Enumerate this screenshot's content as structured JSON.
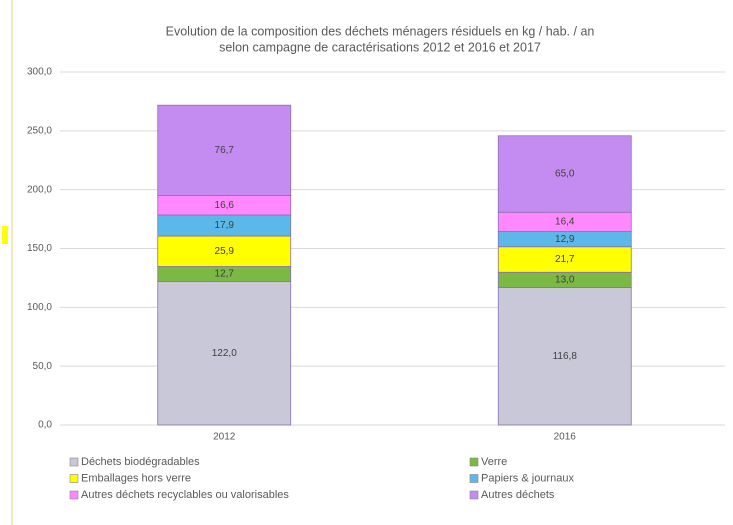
{
  "chart_data": {
    "type": "bar",
    "stacked": true,
    "title": [
      "Evolution de la composition des déchets ménagers résiduels en kg / hab. / an",
      "selon campagne de caractérisations 2012 et 2016 et 2017"
    ],
    "categories": [
      "2012",
      "2016"
    ],
    "series": [
      {
        "name": "Déchets biodégradables",
        "color": "#c8c8d8",
        "values": [
          122.0,
          116.8
        ],
        "value_labels": [
          "122,0",
          "116,8"
        ]
      },
      {
        "name": "Verre",
        "color": "#7cb844",
        "values": [
          12.7,
          13.0
        ],
        "value_labels": [
          "12,7",
          "13,0"
        ]
      },
      {
        "name": "Emballages hors verre",
        "color": "#ffff00",
        "values": [
          25.9,
          21.7
        ],
        "value_labels": [
          "25,9",
          "21,7"
        ]
      },
      {
        "name": "Papiers & journaux",
        "color": "#5cb8e8",
        "values": [
          17.9,
          12.9
        ],
        "value_labels": [
          "17,9",
          "12,9"
        ]
      },
      {
        "name": "Autres déchets recyclables ou valorisables",
        "color": "#ff88ff",
        "values": [
          16.6,
          16.4
        ],
        "value_labels": [
          "16,6",
          "16,4"
        ]
      },
      {
        "name": "Autres déchets",
        "color": "#c48cf0",
        "values": [
          76.7,
          65.0
        ],
        "value_labels": [
          "76,7",
          "65,0"
        ]
      }
    ],
    "ylim": [
      0,
      300
    ],
    "yticks": [
      {
        "value": 0,
        "label": "0,0"
      },
      {
        "value": 50,
        "label": "50,0"
      },
      {
        "value": 100,
        "label": "100,0"
      },
      {
        "value": 150,
        "label": "150,0"
      },
      {
        "value": 200,
        "label": "200,0"
      },
      {
        "value": 250,
        "label": "250,0"
      },
      {
        "value": 300,
        "label": "300,0"
      }
    ],
    "grid": true
  }
}
